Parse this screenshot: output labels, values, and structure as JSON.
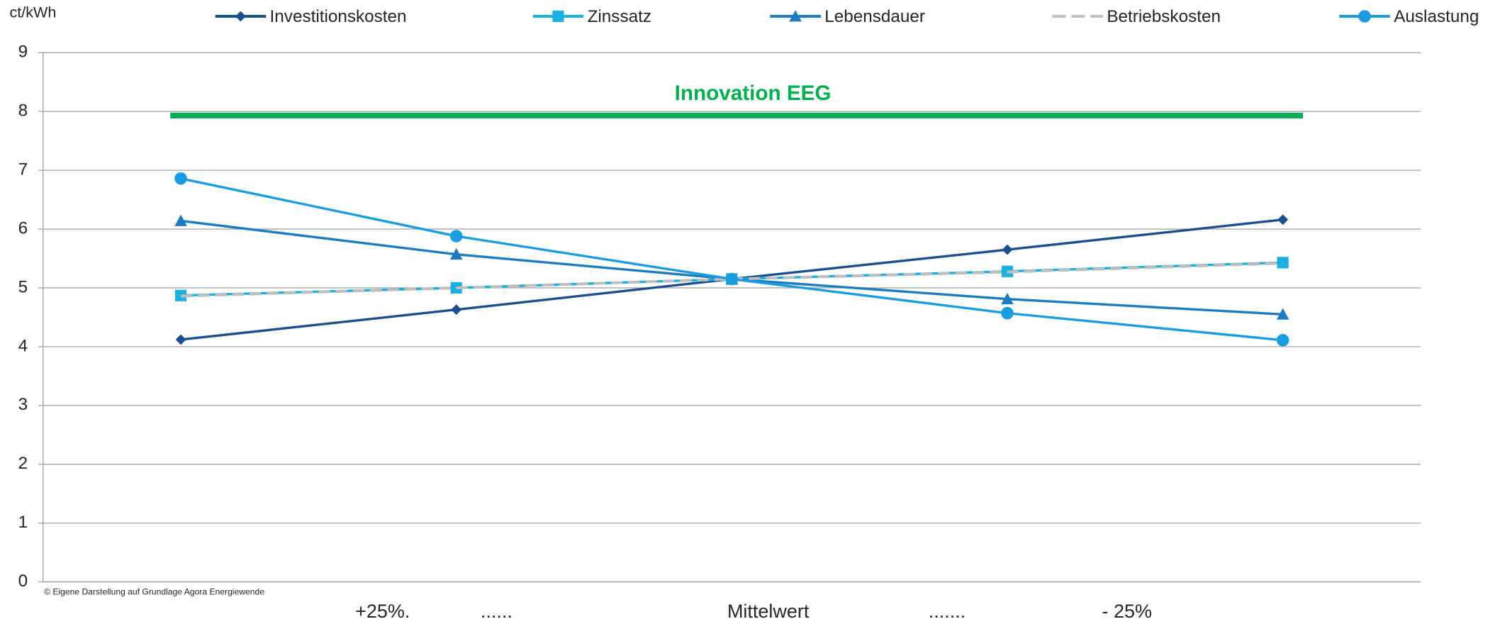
{
  "chart_data": {
    "type": "line",
    "y_unit_label": "ct/kWh",
    "source": "© Eigene Darstellung auf Grundlage Agora Energiewende",
    "categories": [
      "+25%.",
      "......",
      "Mittelwert",
      ".......",
      "- 25%"
    ],
    "ylim": [
      0,
      9
    ],
    "yticks": [
      0,
      1,
      2,
      3,
      4,
      5,
      6,
      7,
      8,
      9
    ],
    "grid": true,
    "legend": "top",
    "reference_line": {
      "label": "Innovation EEG",
      "value": 7.93,
      "color": "#00b050"
    },
    "series": [
      {
        "name": "Investitionskosten",
        "color": "#1b4f8f",
        "marker": "diamond",
        "values": [
          4.12,
          4.63,
          5.15,
          5.65,
          6.16
        ]
      },
      {
        "name": "Zinssatz",
        "color": "#1ab0e2",
        "marker": "square",
        "values": [
          4.87,
          5.0,
          5.15,
          5.28,
          5.43
        ]
      },
      {
        "name": "Lebensdauer",
        "color": "#1f7bbf",
        "marker": "triangle",
        "values": [
          6.14,
          5.57,
          5.15,
          4.81,
          4.55
        ]
      },
      {
        "name": "Betriebskosten",
        "color": "#bfbfbf",
        "marker": "none",
        "dashed": true,
        "values": [
          4.86,
          5.0,
          5.15,
          5.27,
          5.42
        ]
      },
      {
        "name": "Auslastung",
        "color": "#1a9de0",
        "marker": "circle",
        "values": [
          6.86,
          5.88,
          5.15,
          4.57,
          4.11
        ]
      }
    ]
  }
}
